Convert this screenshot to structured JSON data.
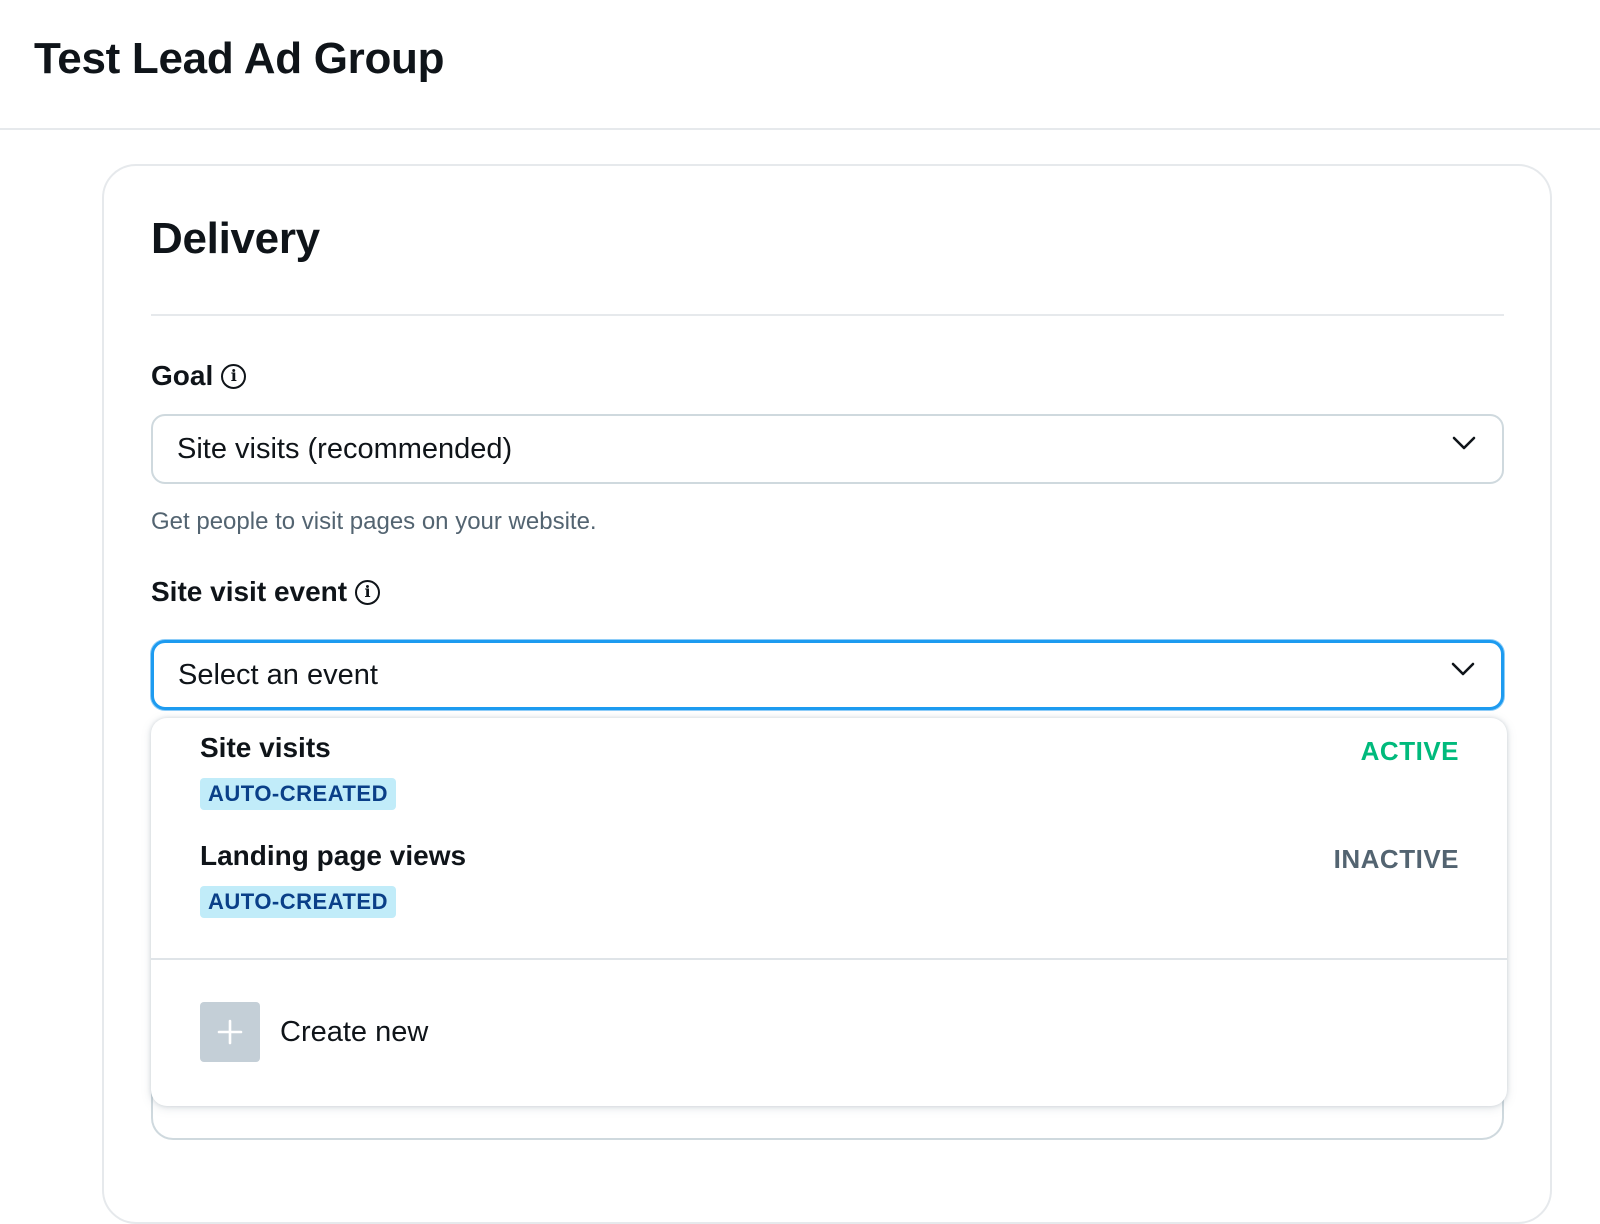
{
  "header": {
    "title": "Test Lead Ad Group"
  },
  "section": {
    "title": "Delivery"
  },
  "goal": {
    "label": "Goal",
    "selected": "Site visits (recommended)",
    "helper": "Get people to visit pages on your website."
  },
  "site_visit_event": {
    "label": "Site visit event",
    "placeholder": "Select an event"
  },
  "dropdown": {
    "options": [
      {
        "name": "Site visits",
        "badge": "AUTO-CREATED",
        "status": "ACTIVE",
        "status_color": "#00ba7c"
      },
      {
        "name": "Landing page views",
        "badge": "AUTO-CREATED",
        "status": "INACTIVE",
        "status_color": "#536471"
      }
    ],
    "create_new_label": "Create new"
  },
  "colors": {
    "focus_border": "#1d9bf0",
    "badge_bg": "#c1ecf9",
    "badge_text": "#0a3f88"
  }
}
